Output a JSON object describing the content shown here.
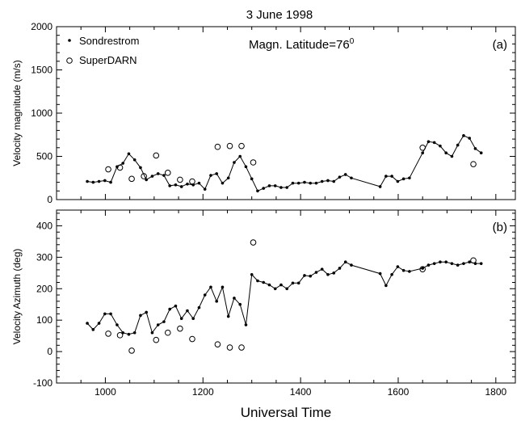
{
  "title": "3  June  1998",
  "xlabel": "Universal Time",
  "chart_data": [
    {
      "type": "scatter",
      "panel_label": "(a)",
      "annotation": "Magn. Latitude=76",
      "annotation_sup": "0",
      "ylabel": "Velocity magnitude (m/s)",
      "xlim": [
        900,
        1840
      ],
      "ylim": [
        0,
        2000
      ],
      "xticks": [
        1000,
        1200,
        1400,
        1600,
        1800
      ],
      "yticks": [
        0,
        500,
        1000,
        1500,
        2000
      ],
      "legend": [
        "Sondrestrom",
        "SuperDARN"
      ],
      "legend_position": "top-left",
      "series": [
        {
          "name": "Sondrestrom",
          "style": "line-dots",
          "x": [
            963,
            975,
            987,
            999,
            1011,
            1024,
            1036,
            1048,
            1060,
            1072,
            1084,
            1096,
            1108,
            1120,
            1132,
            1144,
            1156,
            1168,
            1180,
            1192,
            1204,
            1216,
            1228,
            1240,
            1252,
            1264,
            1276,
            1288,
            1300,
            1312,
            1324,
            1336,
            1348,
            1360,
            1372,
            1384,
            1396,
            1408,
            1420,
            1432,
            1444,
            1456,
            1468,
            1480,
            1492,
            1504,
            1563,
            1575,
            1587,
            1599,
            1611,
            1623,
            1650,
            1662,
            1674,
            1686,
            1698,
            1710,
            1722,
            1734,
            1746,
            1758,
            1770
          ],
          "y": [
            210,
            200,
            210,
            220,
            200,
            380,
            420,
            530,
            460,
            370,
            230,
            270,
            300,
            280,
            160,
            170,
            150,
            180,
            170,
            190,
            120,
            280,
            300,
            190,
            250,
            430,
            500,
            380,
            240,
            100,
            130,
            160,
            160,
            140,
            140,
            190,
            190,
            200,
            190,
            190,
            210,
            220,
            210,
            260,
            290,
            250,
            150,
            270,
            270,
            210,
            240,
            250,
            540,
            670,
            660,
            620,
            540,
            500,
            630,
            740,
            710,
            590,
            540
          ]
        },
        {
          "name": "SuperDARN",
          "style": "open-circles",
          "x": [
            1006,
            1030,
            1054,
            1079,
            1104,
            1128,
            1153,
            1178,
            1230,
            1255,
            1279,
            1303,
            1650,
            1754
          ],
          "y": [
            350,
            370,
            240,
            270,
            510,
            310,
            230,
            210,
            610,
            620,
            620,
            430,
            600,
            410
          ]
        }
      ]
    },
    {
      "type": "scatter",
      "panel_label": "(b)",
      "ylabel": "Velocity Azimuth (deg)",
      "xlim": [
        900,
        1840
      ],
      "ylim": [
        -100,
        450
      ],
      "xticks": [
        1000,
        1200,
        1400,
        1600,
        1800
      ],
      "xticklabels": [
        "1000",
        "1200",
        "1400",
        "1600",
        "1800"
      ],
      "yticks": [
        -100,
        0,
        100,
        200,
        300,
        400
      ],
      "series": [
        {
          "name": "Sondrestrom",
          "style": "line-dots",
          "x": [
            963,
            975,
            987,
            999,
            1011,
            1024,
            1036,
            1048,
            1060,
            1072,
            1084,
            1096,
            1108,
            1120,
            1132,
            1144,
            1156,
            1168,
            1180,
            1192,
            1204,
            1216,
            1228,
            1240,
            1252,
            1264,
            1276,
            1288,
            1300,
            1312,
            1324,
            1336,
            1348,
            1360,
            1372,
            1384,
            1396,
            1408,
            1420,
            1432,
            1444,
            1456,
            1468,
            1480,
            1492,
            1504,
            1563,
            1575,
            1587,
            1599,
            1611,
            1623,
            1650,
            1662,
            1674,
            1686,
            1698,
            1710,
            1722,
            1734,
            1746,
            1758,
            1770
          ],
          "y": [
            90,
            70,
            90,
            120,
            120,
            85,
            60,
            55,
            60,
            115,
            125,
            60,
            85,
            95,
            135,
            145,
            105,
            130,
            105,
            140,
            180,
            205,
            160,
            205,
            112,
            170,
            150,
            85,
            245,
            225,
            220,
            212,
            200,
            212,
            200,
            218,
            218,
            242,
            240,
            252,
            262,
            245,
            250,
            265,
            285,
            275,
            248,
            210,
            245,
            270,
            258,
            255,
            265,
            275,
            280,
            285,
            285,
            280,
            275,
            280,
            285,
            280,
            280
          ]
        },
        {
          "name": "SuperDARN",
          "style": "open-circles",
          "x": [
            1006,
            1030,
            1054,
            1104,
            1128,
            1153,
            1178,
            1230,
            1255,
            1279,
            1303,
            1650,
            1754
          ],
          "y": [
            57,
            52,
            3,
            37,
            60,
            73,
            40,
            23,
            13,
            13,
            347,
            262,
            290
          ]
        }
      ]
    }
  ]
}
